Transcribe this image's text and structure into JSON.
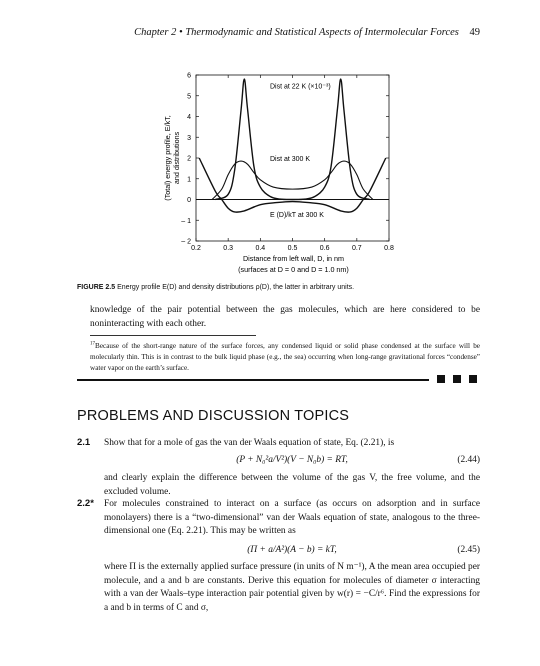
{
  "running_head": {
    "chapter": "Chapter 2",
    "bullet": "•",
    "title": "Thermodynamic and Statistical Aspects of Intermolecular Forces",
    "page": "49"
  },
  "figure": {
    "caption_label": "FIGURE 2.5",
    "caption_text": "Energy profile E(D) and density distributions ρ(D), the latter in arbitrary units."
  },
  "chart_data": {
    "type": "line",
    "ylabel_line1": "(Total) energy profile, E/kT,",
    "ylabel_line2": "and distributions",
    "xlabel_line1": "Distance from left wall, D, in nm",
    "xlabel_line2": "(surfaces at D = 0 and D = 1.0 nm)",
    "xlim": [
      0.2,
      0.8
    ],
    "ylim": [
      -2,
      6
    ],
    "x_ticks": [
      "0.2",
      "0.3",
      "0.4",
      "0.5",
      "0.6",
      "0.7",
      "0.8"
    ],
    "y_ticks": [
      "6",
      "5",
      "4",
      "3",
      "2",
      "1",
      "0",
      "– 1",
      "– 2"
    ],
    "annotations": [
      {
        "text": "Dist at 22 K (×10⁻³)",
        "x": 0.43,
        "y": 5.35
      },
      {
        "text": "Dist at 300 K",
        "x": 0.43,
        "y": 1.85
      },
      {
        "text": "E (D)/kT at 300 K",
        "x": 0.43,
        "y": -0.85
      }
    ],
    "series": [
      {
        "x": [
          0.26,
          0.3,
          0.32,
          0.34,
          0.35,
          0.36,
          0.38,
          0.4,
          0.43,
          0.46,
          0.5,
          0.54,
          0.57,
          0.6,
          0.62,
          0.64,
          0.65,
          0.66,
          0.68,
          0.7,
          0.74
        ],
        "y": [
          0.0,
          0.25,
          1.4,
          4.3,
          5.8,
          4.4,
          1.6,
          0.6,
          0.15,
          0.02,
          0.0,
          0.02,
          0.15,
          0.6,
          1.6,
          4.4,
          5.8,
          4.3,
          1.4,
          0.25,
          0.0
        ]
      },
      {
        "x": [
          0.25,
          0.28,
          0.3,
          0.32,
          0.34,
          0.36,
          0.38,
          0.4,
          0.44,
          0.5,
          0.56,
          0.6,
          0.62,
          0.64,
          0.66,
          0.68,
          0.7,
          0.72,
          0.75
        ],
        "y": [
          0.0,
          0.5,
          1.2,
          1.7,
          1.85,
          1.7,
          1.3,
          0.95,
          0.6,
          0.5,
          0.6,
          0.95,
          1.3,
          1.7,
          1.85,
          1.7,
          1.2,
          0.5,
          0.0
        ],
        "style": "thin"
      },
      {
        "x": [
          0.21,
          0.26,
          0.28,
          0.3,
          0.32,
          0.35,
          0.4,
          0.45,
          0.5,
          0.55,
          0.6,
          0.65,
          0.68,
          0.7,
          0.72,
          0.74,
          0.79
        ],
        "y": [
          2.0,
          0.4,
          0.0,
          -0.42,
          -0.6,
          -0.55,
          -0.25,
          -0.15,
          -0.1,
          -0.15,
          -0.25,
          -0.55,
          -0.6,
          -0.42,
          0.0,
          0.4,
          2.0
        ]
      }
    ],
    "zero_line": true
  },
  "body_para": "knowledge of the pair potential between the gas molecules, which are here considered to be noninteracting with each other.",
  "footnote": {
    "mark": "17",
    "text": "Because of the short-range nature of the surface forces, any condensed liquid or solid phase condensed at the surface will be molecularly thin. This is in contrast to the bulk liquid phase (e.g., the sea) occurring when long-range gravitational forces “condense” water vapor on the earth’s surface."
  },
  "section_title": "PROBLEMS AND DISCUSSION TOPICS",
  "problems": [
    {
      "number": "2.1",
      "line1": "Show that for a mole of gas the van der Waals equation of state, Eq. (2.21), is",
      "equation": "(P + N₀²a/V²)(V − N₀b) = RT,",
      "eq_number": "(2.44)",
      "after": "and clearly explain the difference between the volume of the gas V, the free volume, and the excluded volume."
    },
    {
      "number": "2.2*",
      "line1": "For molecules constrained to interact on a surface (as occurs on adsorption and in surface monolayers) there is a “two-dimensional” van der Waals equation of state, analogous to the three-dimensional one (Eq. 2.21). This may be written as",
      "equation": "(Π + a/A²)(A − b) = kT,",
      "eq_number": "(2.45)",
      "after": "where Π is the externally applied surface pressure (in units of N m⁻¹), A the mean area occupied per molecule, and a and b are constants. Derive this equation for molecules of diameter σ interacting with a van der Waals–type interaction pair potential given by w(r) = −C/r⁶. Find the expressions for a and b in terms of C and σ,"
    }
  ]
}
